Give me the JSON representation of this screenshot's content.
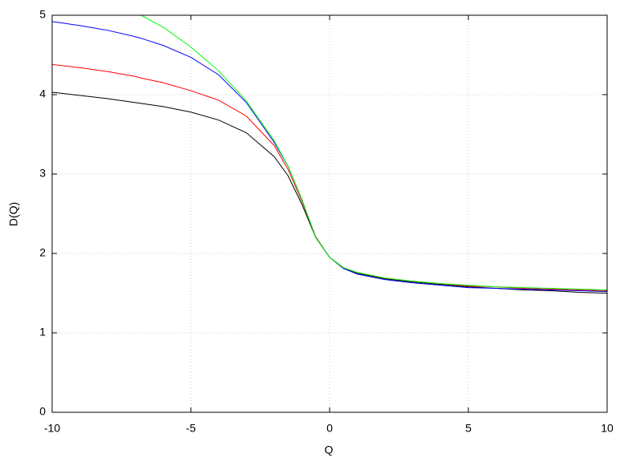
{
  "chart_data": {
    "type": "line",
    "xlabel": "Q",
    "ylabel": "D(Q)",
    "x": [
      -10,
      -9,
      -8,
      -7,
      -6.8,
      -6,
      -5,
      -4,
      -3,
      -2,
      -1.5,
      -1,
      -0.5,
      0,
      0.5,
      1,
      2,
      3,
      4,
      5,
      6,
      7,
      8,
      9,
      10
    ],
    "series": [
      {
        "color": "#000000",
        "values": [
          4.03,
          3.99,
          3.95,
          3.9,
          3.89,
          3.85,
          3.78,
          3.68,
          3.52,
          3.22,
          2.98,
          2.62,
          2.2,
          1.95,
          1.82,
          1.75,
          1.68,
          1.64,
          1.61,
          1.58,
          1.56,
          1.54,
          1.53,
          1.51,
          1.5
        ]
      },
      {
        "color": "#ff0000",
        "values": [
          4.38,
          4.34,
          4.29,
          4.23,
          4.21,
          4.15,
          4.05,
          3.93,
          3.73,
          3.36,
          3.06,
          2.66,
          2.21,
          1.95,
          1.82,
          1.76,
          1.69,
          1.65,
          1.62,
          1.59,
          1.58,
          1.56,
          1.55,
          1.54,
          1.53
        ]
      },
      {
        "color": "#0000ff",
        "values": [
          4.92,
          4.87,
          4.81,
          4.73,
          4.71,
          4.62,
          4.47,
          4.25,
          3.9,
          3.4,
          3.1,
          2.68,
          2.2,
          1.95,
          1.81,
          1.74,
          1.67,
          1.63,
          1.6,
          1.57,
          1.56,
          1.55,
          1.54,
          1.53,
          1.52
        ]
      },
      {
        "color": "#00ff00",
        "values": [
          null,
          null,
          null,
          null,
          5.0,
          4.85,
          4.6,
          4.3,
          3.92,
          3.42,
          3.1,
          2.68,
          2.2,
          1.95,
          1.82,
          1.76,
          1.69,
          1.65,
          1.62,
          1.6,
          1.58,
          1.57,
          1.56,
          1.55,
          1.54
        ]
      }
    ],
    "xlim": [
      -10,
      10
    ],
    "xticks": [
      -10,
      -5,
      0,
      5,
      10
    ],
    "ylim": [
      0,
      5
    ],
    "yticks": [
      0,
      1,
      2,
      3,
      4,
      5
    ],
    "grid": true
  }
}
